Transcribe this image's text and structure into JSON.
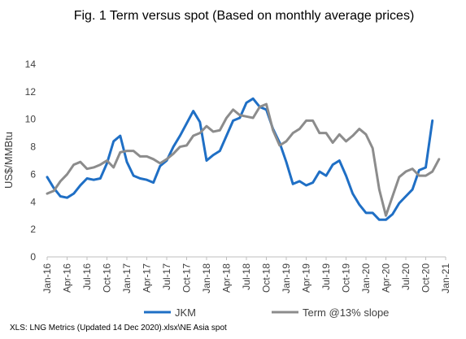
{
  "chart_data": {
    "type": "line",
    "title": "Fig. 1 Term versus spot (Based on monthly average prices)",
    "ylabel": "US$/MMBtu",
    "xlabel": "",
    "ylim": [
      0,
      14
    ],
    "yticks": [
      0,
      2,
      4,
      6,
      8,
      10,
      12,
      14
    ],
    "x_tick_labels": [
      "Jan-16",
      "Apr-16",
      "Jul-16",
      "Oct-16",
      "Jan-17",
      "Apr-17",
      "Jul-17",
      "Oct-17",
      "Jan-18",
      "Apr-18",
      "Jul-18",
      "Oct-18",
      "Jan-19",
      "Apr-19",
      "Jul-19",
      "Oct-19",
      "Jan-20",
      "Apr-20",
      "Jul-20",
      "Oct-20",
      "Jan-21"
    ],
    "grid": "none",
    "legend_position": "bottom",
    "x": [
      "Jan-16",
      "Feb-16",
      "Mar-16",
      "Apr-16",
      "May-16",
      "Jun-16",
      "Jul-16",
      "Aug-16",
      "Sep-16",
      "Oct-16",
      "Nov-16",
      "Dec-16",
      "Jan-17",
      "Feb-17",
      "Mar-17",
      "Apr-17",
      "May-17",
      "Jun-17",
      "Jul-17",
      "Aug-17",
      "Sep-17",
      "Oct-17",
      "Nov-17",
      "Dec-17",
      "Jan-18",
      "Feb-18",
      "Mar-18",
      "Apr-18",
      "May-18",
      "Jun-18",
      "Jul-18",
      "Aug-18",
      "Sep-18",
      "Oct-18",
      "Nov-18",
      "Dec-18",
      "Jan-19",
      "Feb-19",
      "Mar-19",
      "Apr-19",
      "May-19",
      "Jun-19",
      "Jul-19",
      "Aug-19",
      "Sep-19",
      "Oct-19",
      "Nov-19",
      "Dec-19",
      "Jan-20",
      "Feb-20",
      "Mar-20",
      "Apr-20",
      "May-20",
      "Jun-20",
      "Jul-20",
      "Aug-20",
      "Sep-20",
      "Oct-20",
      "Nov-20",
      "Dec-20"
    ],
    "series": [
      {
        "name": "JKM",
        "color": "#1f6fc5",
        "values": [
          5.8,
          5.0,
          4.4,
          4.3,
          4.6,
          5.2,
          5.7,
          5.6,
          5.7,
          6.8,
          8.4,
          8.8,
          6.9,
          5.9,
          5.7,
          5.6,
          5.4,
          6.6,
          7.0,
          8.0,
          8.8,
          9.7,
          10.6,
          9.8,
          7.0,
          7.4,
          7.7,
          8.8,
          9.9,
          10.1,
          11.2,
          11.5,
          10.9,
          10.7,
          9.3,
          8.3,
          6.9,
          5.3,
          5.5,
          5.2,
          5.4,
          6.2,
          5.9,
          6.7,
          7.0,
          5.9,
          4.6,
          3.8,
          3.2,
          3.2,
          2.7,
          2.7,
          3.1,
          3.9,
          4.4,
          4.9,
          6.3,
          6.5,
          9.9,
          null
        ]
      },
      {
        "name": "Term @13% slope",
        "color": "#8c8c8c",
        "values": [
          4.6,
          4.8,
          5.5,
          6.0,
          6.7,
          6.9,
          6.4,
          6.5,
          6.7,
          7.0,
          6.5,
          7.6,
          7.7,
          7.7,
          7.3,
          7.3,
          7.1,
          6.8,
          7.1,
          7.5,
          8.0,
          8.1,
          8.8,
          9.0,
          9.5,
          9.1,
          9.2,
          10.1,
          10.7,
          10.3,
          10.2,
          10.1,
          10.9,
          11.1,
          9.2,
          8.1,
          8.4,
          9.0,
          9.3,
          9.9,
          9.9,
          9.0,
          9.0,
          8.3,
          8.9,
          8.4,
          8.8,
          9.3,
          8.9,
          7.9,
          4.9,
          3.0,
          4.4,
          5.8,
          6.2,
          6.4,
          5.9,
          5.9,
          6.2,
          7.1
        ]
      }
    ]
  },
  "footer": {
    "source": "XLS: LNG Metrics (Updated 14 Dec 2020).xlsx\\NE Asia spot"
  }
}
